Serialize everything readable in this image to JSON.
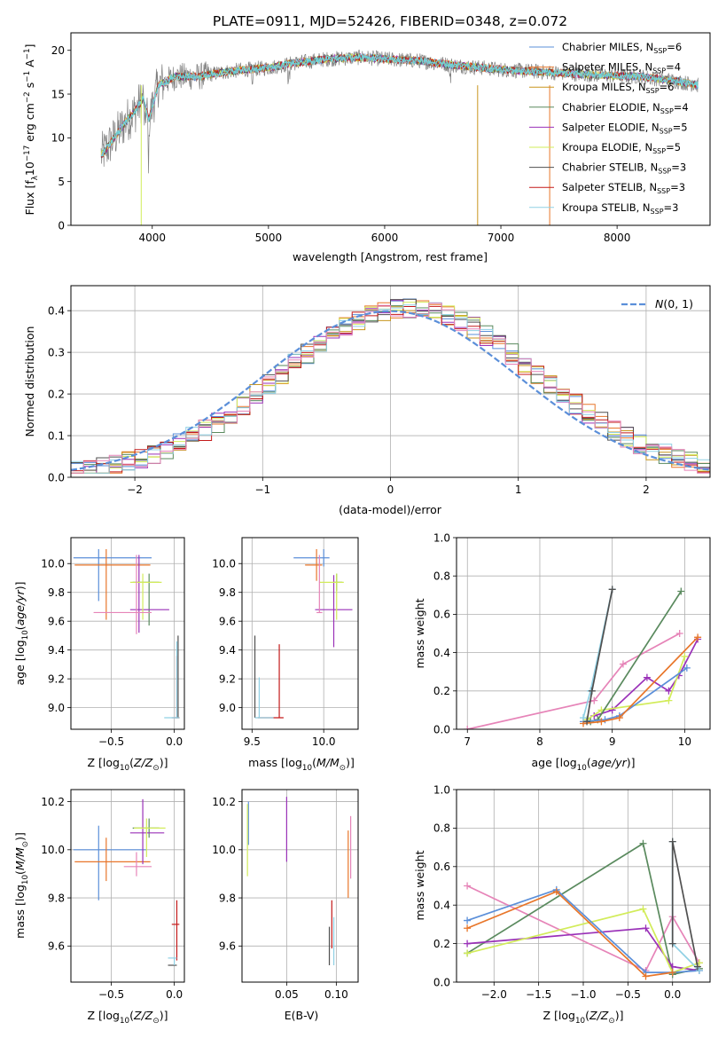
{
  "figure_title": "PLATE=0911, MJD=52426, FIBERID=0348, z=0.072",
  "colors": {
    "chabrier_miles": "#5b8fd9",
    "salpeter_miles": "#e8762a",
    "kroupa_miles": "#c8961e",
    "chabrier_elodie": "#5a8a5e",
    "salpeter_elodie": "#9a31b8",
    "kroupa_elodie": "#d2ec5a",
    "chabrier_stelib": "#505050",
    "salpeter_stelib": "#c41a1a",
    "kroupa_stelib": "#8fd0e4",
    "pink": "#e684b8",
    "data": "#808080",
    "model": "#6ad3d6",
    "gaussian": "#5b8fd9"
  },
  "chart_data": [
    {
      "id": "spectrum",
      "type": "line",
      "title": "PLATE=0911, MJD=52426, FIBERID=0348, z=0.072",
      "xlabel": "wavelength [Angstrom, rest frame]",
      "ylabel": "Flux [f_λ 10^-17 erg cm^-2 s^-1 A^-1]",
      "xlim": [
        3300,
        8800
      ],
      "ylim": [
        0,
        22
      ],
      "xticks": [
        4000,
        5000,
        6000,
        7000,
        8000
      ],
      "yticks": [
        0,
        5,
        10,
        15,
        20
      ],
      "grid": false,
      "legend_position": "top-right",
      "continuum": {
        "x": [
          3560,
          3620,
          3700,
          3780,
          3850,
          3920,
          3970,
          4050,
          4200,
          4400,
          4600,
          4800,
          5000,
          5200,
          5500,
          5800,
          6000,
          6300,
          6600,
          7000,
          7400,
          7800,
          8200,
          8500,
          8700
        ],
        "y": [
          8.0,
          9.0,
          10.5,
          12.0,
          13.0,
          14.5,
          12.0,
          16.0,
          17.0,
          17.0,
          17.5,
          17.8,
          18.0,
          18.5,
          19.0,
          19.2,
          19.0,
          18.8,
          18.3,
          17.8,
          17.5,
          17.2,
          17.0,
          16.5,
          16.0
        ]
      },
      "series": [
        {
          "name": "Chabrier MILES, N_SSP=6",
          "color_key": "chabrier_miles"
        },
        {
          "name": "Salpeter MILES, N_SSP=4",
          "color_key": "salpeter_miles"
        },
        {
          "name": "Kroupa MILES, N_SSP=6",
          "color_key": "kroupa_miles"
        },
        {
          "name": "Chabrier ELODIE, N_SSP=4",
          "color_key": "chabrier_elodie"
        },
        {
          "name": "Salpeter ELODIE, N_SSP=5",
          "color_key": "salpeter_elodie"
        },
        {
          "name": "Kroupa ELODIE, N_SSP=5",
          "color_key": "kroupa_elodie"
        },
        {
          "name": "Chabrier STELIB, N_SSP=3",
          "color_key": "chabrier_stelib"
        },
        {
          "name": "Salpeter STELIB, N_SSP=3",
          "color_key": "salpeter_stelib"
        },
        {
          "name": "Kroupa STELIB, N_SSP=3",
          "color_key": "kroupa_stelib"
        }
      ],
      "legend_labels": [
        {
          "prefix": "Chabrier MILES, N",
          "sub": "SSP",
          "suffix": "=6"
        },
        {
          "prefix": "Salpeter MILES, N",
          "sub": "SSP",
          "suffix": "=4"
        },
        {
          "prefix": "Kroupa MILES, N",
          "sub": "SSP",
          "suffix": "=6"
        },
        {
          "prefix": "Chabrier ELODIE, N",
          "sub": "SSP",
          "suffix": "=4"
        },
        {
          "prefix": "Salpeter ELODIE, N",
          "sub": "SSP",
          "suffix": "=5"
        },
        {
          "prefix": "Kroupa ELODIE, N",
          "sub": "SSP",
          "suffix": "=5"
        },
        {
          "prefix": "Chabrier STELIB, N",
          "sub": "SSP",
          "suffix": "=3"
        },
        {
          "prefix": "Salpeter STELIB, N",
          "sub": "SSP",
          "suffix": "=3"
        },
        {
          "prefix": "Kroupa STELIB, N",
          "sub": "SSP",
          "suffix": "=3"
        }
      ]
    },
    {
      "id": "residuals",
      "type": "histogram",
      "xlabel": "(data-model)/error",
      "ylabel": "Normed distribution",
      "xlim": [
        -2.5,
        2.5
      ],
      "ylim": [
        0,
        0.46
      ],
      "xticks": [
        -2,
        -1,
        0,
        1,
        2
      ],
      "yticks": [
        0.0,
        0.1,
        0.2,
        0.3,
        0.4
      ],
      "grid": true,
      "legend_position": "top-right",
      "legend_label": "N(0,1)",
      "bin_width": 0.1,
      "bins_from": -2.5,
      "bins_to": 2.5
    },
    {
      "id": "age_vs_z",
      "type": "errorbar",
      "xlabel": "Z [log10(Z/Z_sun)]",
      "ylabel": "age [log10(age/yr)]",
      "xlim": [
        -0.82,
        0.08
      ],
      "ylim": [
        8.85,
        10.18
      ],
      "xticks": [
        -0.5,
        0.0
      ],
      "xtick_labels": [
        "−0.5",
        "0.0"
      ],
      "yticks": [
        9.0,
        9.2,
        9.4,
        9.6,
        9.8,
        10.0
      ],
      "grid": true,
      "points": [
        {
          "x": -0.6,
          "xerr": [
            0.2,
            0.42
          ],
          "y": 10.04,
          "yerr": [
            0.3,
            0.06
          ],
          "color_key": "chabrier_miles"
        },
        {
          "x": -0.54,
          "xerr": [
            0.25,
            0.35
          ],
          "y": 9.99,
          "yerr": [
            0.38,
            0.11
          ],
          "color_key": "salpeter_miles"
        },
        {
          "x": -0.2,
          "xerr": [
            0.13,
            0.08
          ],
          "y": 9.87,
          "yerr": [
            0.3,
            0.06
          ],
          "color_key": "chabrier_elodie"
        },
        {
          "x": -0.28,
          "xerr": [
            0.07,
            0.24
          ],
          "y": 9.68,
          "yerr": [
            0.16,
            0.38
          ],
          "color_key": "salpeter_elodie"
        },
        {
          "x": -0.25,
          "xerr": [
            0.1,
            0.15
          ],
          "y": 9.87,
          "yerr": [
            0.26,
            0.06
          ],
          "color_key": "kroupa_elodie"
        },
        {
          "x": -0.3,
          "xerr": [
            0.34,
            0.12
          ],
          "y": 9.66,
          "yerr": [
            0.15,
            0.4
          ],
          "color_key": "pink"
        },
        {
          "x": 0.03,
          "xerr": [
            0.02,
            0.01
          ],
          "y": 8.93,
          "yerr": [
            0.0,
            0.57
          ],
          "color_key": "chabrier_stelib"
        },
        {
          "x": 0.02,
          "xerr": [
            0.04,
            0.02
          ],
          "y": 8.93,
          "yerr": [
            0.0,
            0.43
          ],
          "color_key": "salpeter_stelib"
        },
        {
          "x": 0.02,
          "xerr": [
            0.1,
            0.02
          ],
          "y": 8.93,
          "yerr": [
            0.0,
            0.53
          ],
          "color_key": "kroupa_stelib"
        }
      ]
    },
    {
      "id": "age_vs_mass",
      "type": "errorbar",
      "xlabel": "mass [log10(M/M_sun)]",
      "ylabel": "",
      "xlim": [
        9.43,
        10.24
      ],
      "ylim": [
        8.85,
        10.18
      ],
      "xticks": [
        9.5,
        10.0
      ],
      "xtick_labels": [
        "9.5",
        "10.0"
      ],
      "yticks": [
        9.0,
        9.2,
        9.4,
        9.6,
        9.8,
        10.0
      ],
      "grid": true,
      "points": [
        {
          "x": 10.0,
          "xerr": [
            0.21,
            0.04
          ],
          "y": 10.04,
          "yerr": [
            0.06,
            0.06
          ],
          "color_key": "chabrier_miles"
        },
        {
          "x": 9.95,
          "xerr": [
            0.08,
            0.04
          ],
          "y": 9.99,
          "yerr": [
            0.11,
            0.11
          ],
          "color_key": "salpeter_miles"
        },
        {
          "x": 10.09,
          "xerr": [
            0.02,
            0.04
          ],
          "y": 9.87,
          "yerr": [
            0.06,
            0.06
          ],
          "color_key": "chabrier_elodie"
        },
        {
          "x": 10.07,
          "xerr": [
            0.13,
            0.13
          ],
          "y": 9.68,
          "yerr": [
            0.26,
            0.24
          ],
          "color_key": "salpeter_elodie"
        },
        {
          "x": 10.09,
          "xerr": [
            0.12,
            0.05
          ],
          "y": 9.87,
          "yerr": [
            0.26,
            0.06
          ],
          "color_key": "kroupa_elodie"
        },
        {
          "x": 9.97,
          "xerr": [
            0.02,
            0.02
          ],
          "y": 9.66,
          "yerr": [
            0.0,
            0.4
          ],
          "color_key": "pink"
        },
        {
          "x": 9.52,
          "xerr": [
            0.0,
            0.0
          ],
          "y": 8.93,
          "yerr": [
            0.0,
            0.57
          ],
          "color_key": "chabrier_stelib"
        },
        {
          "x": 9.69,
          "xerr": [
            0.15,
            0.03
          ],
          "y": 8.93,
          "yerr": [
            0.0,
            0.51
          ],
          "color_key": "salpeter_stelib"
        },
        {
          "x": 9.55,
          "xerr": [
            0.03,
            0.1
          ],
          "y": 8.93,
          "yerr": [
            0.0,
            0.28
          ],
          "color_key": "kroupa_stelib"
        }
      ]
    },
    {
      "id": "weight_vs_age",
      "type": "line",
      "xlabel": "age [log10(age/yr)]",
      "ylabel": "mass weight",
      "xlim": [
        6.85,
        10.35
      ],
      "ylim": [
        0,
        1.0
      ],
      "xticks": [
        7,
        8,
        9,
        10
      ],
      "xtick_labels": [
        "7",
        "8",
        "9",
        "10"
      ],
      "yticks": [
        0.0,
        0.2,
        0.4,
        0.6,
        0.8,
        1.0
      ],
      "grid": true,
      "series": [
        {
          "color_key": "pink",
          "x": [
            7.0,
            8.75,
            9.15,
            9.93
          ],
          "y": [
            0.0,
            0.15,
            0.34,
            0.5
          ]
        },
        {
          "color_key": "salpeter_elodie",
          "x": [
            8.75,
            9.0,
            9.48,
            9.78,
            9.92,
            10.18
          ],
          "y": [
            0.07,
            0.1,
            0.27,
            0.2,
            0.28,
            0.47
          ]
        },
        {
          "color_key": "kroupa_elodie",
          "x": [
            8.65,
            8.85,
            9.78,
            10.0
          ],
          "y": [
            0.05,
            0.1,
            0.15,
            0.38
          ]
        },
        {
          "color_key": "chabrier_elodie",
          "x": [
            8.7,
            8.8,
            9.95
          ],
          "y": [
            0.04,
            0.05,
            0.72
          ]
        },
        {
          "color_key": "chabrier_miles",
          "x": [
            8.6,
            8.9,
            9.1,
            10.03
          ],
          "y": [
            0.04,
            0.05,
            0.07,
            0.32
          ]
        },
        {
          "color_key": "salpeter_miles",
          "x": [
            8.6,
            8.85,
            9.1,
            10.18
          ],
          "y": [
            0.03,
            0.04,
            0.06,
            0.48
          ]
        },
        {
          "color_key": "kroupa_stelib",
          "x": [
            8.6,
            8.7,
            9.0
          ],
          "y": [
            0.06,
            0.2,
            0.73
          ]
        },
        {
          "color_key": "chabrier_stelib",
          "x": [
            8.65,
            8.72,
            9.0
          ],
          "y": [
            0.04,
            0.2,
            0.73
          ]
        }
      ]
    },
    {
      "id": "mass_vs_z",
      "type": "errorbar",
      "xlabel": "Z [log10(Z/Z_sun)]",
      "ylabel": "mass [log10(M/M_sun)]",
      "xlim": [
        -0.82,
        0.08
      ],
      "ylim": [
        9.45,
        10.25
      ],
      "xticks": [
        -0.5,
        0.0
      ],
      "xtick_labels": [
        "−0.5",
        "0.0"
      ],
      "yticks": [
        9.6,
        9.8,
        10.0,
        10.2
      ],
      "grid": true,
      "points": [
        {
          "x": -0.6,
          "xerr": [
            0.2,
            0.38
          ],
          "y": 10.0,
          "yerr": [
            0.21,
            0.1
          ],
          "color_key": "chabrier_miles"
        },
        {
          "x": -0.54,
          "xerr": [
            0.25,
            0.35
          ],
          "y": 9.95,
          "yerr": [
            0.08,
            0.1
          ],
          "color_key": "salpeter_miles"
        },
        {
          "x": -0.2,
          "xerr": [
            0.13,
            0.08
          ],
          "y": 10.09,
          "yerr": [
            0.04,
            0.04
          ],
          "color_key": "chabrier_elodie"
        },
        {
          "x": -0.25,
          "xerr": [
            0.1,
            0.17
          ],
          "y": 10.07,
          "yerr": [
            0.13,
            0.14
          ],
          "color_key": "salpeter_elodie"
        },
        {
          "x": -0.22,
          "xerr": [
            0.1,
            0.15
          ],
          "y": 10.09,
          "yerr": [
            0.12,
            0.04
          ],
          "color_key": "kroupa_elodie"
        },
        {
          "x": -0.3,
          "xerr": [
            0.1,
            0.12
          ],
          "y": 9.93,
          "yerr": [
            0.04,
            0.06
          ],
          "color_key": "pink"
        },
        {
          "x": 0.0,
          "xerr": [
            0.05,
            0.02
          ],
          "y": 9.52,
          "yerr": [
            0.0,
            0.0
          ],
          "color_key": "chabrier_stelib"
        },
        {
          "x": 0.02,
          "xerr": [
            0.04,
            0.02
          ],
          "y": 9.69,
          "yerr": [
            0.15,
            0.1
          ],
          "color_key": "salpeter_stelib"
        },
        {
          "x": 0.0,
          "xerr": [
            0.05,
            0.02
          ],
          "y": 9.55,
          "yerr": [
            0.03,
            0.0
          ],
          "color_key": "kroupa_stelib"
        }
      ]
    },
    {
      "id": "mass_vs_ebv",
      "type": "errorbar",
      "xlabel": "E(B-V)",
      "ylabel": "",
      "xlim": [
        0.005,
        0.122
      ],
      "ylim": [
        9.45,
        10.25
      ],
      "xticks": [
        0.05,
        0.1
      ],
      "xtick_labels": [
        "0.05",
        "0.10"
      ],
      "yticks": [
        9.6,
        9.8,
        10.0,
        10.2
      ],
      "grid": true,
      "points": [
        {
          "x": 0.0115,
          "xerr": [
            0,
            0
          ],
          "y": 10.07,
          "yerr": [
            0.05,
            0.13
          ],
          "color_key": "chabrier_miles"
        },
        {
          "x": 0.0105,
          "xerr": [
            0,
            0
          ],
          "y": 10.05,
          "yerr": [
            0.16,
            0.14
          ],
          "color_key": "kroupa_elodie"
        },
        {
          "x": 0.05,
          "xerr": [
            0,
            0
          ],
          "y": 10.1,
          "yerr": [
            0.15,
            0.12
          ],
          "color_key": "salpeter_elodie"
        },
        {
          "x": 0.093,
          "xerr": [
            0,
            0
          ],
          "y": 9.59,
          "yerr": [
            0.07,
            0.09
          ],
          "color_key": "chabrier_stelib"
        },
        {
          "x": 0.0955,
          "xerr": [
            0,
            0
          ],
          "y": 9.7,
          "yerr": [
            0.11,
            0.09
          ],
          "color_key": "salpeter_stelib"
        },
        {
          "x": 0.0975,
          "xerr": [
            0,
            0
          ],
          "y": 9.62,
          "yerr": [
            0.1,
            0.1
          ],
          "color_key": "kroupa_stelib"
        },
        {
          "x": 0.112,
          "xerr": [
            0,
            0
          ],
          "y": 9.95,
          "yerr": [
            0.15,
            0.13
          ],
          "color_key": "salpeter_miles"
        },
        {
          "x": 0.1145,
          "xerr": [
            0,
            0
          ],
          "y": 10.0,
          "yerr": [
            0.12,
            0.14
          ],
          "color_key": "pink"
        }
      ]
    },
    {
      "id": "weight_vs_z",
      "type": "line",
      "xlabel": "Z [log10(Z/Z_sun)]",
      "ylabel": "mass weight",
      "xlim": [
        -2.42,
        0.42
      ],
      "ylim": [
        0,
        1.0
      ],
      "xticks": [
        -2.0,
        -1.5,
        -1.0,
        -0.5,
        0.0
      ],
      "xtick_labels": [
        "−2.0",
        "−1.5",
        "−1.0",
        "−0.5",
        "0.0"
      ],
      "yticks": [
        0.0,
        0.2,
        0.4,
        0.6,
        0.8,
        1.0
      ],
      "grid": true,
      "series": [
        {
          "color_key": "pink",
          "x": [
            -2.3,
            -0.3,
            0.0,
            0.3
          ],
          "y": [
            0.5,
            0.06,
            0.34,
            0.1
          ]
        },
        {
          "color_key": "chabrier_elodie",
          "x": [
            -2.3,
            -0.33,
            0.0,
            0.3
          ],
          "y": [
            0.15,
            0.72,
            0.04,
            0.07
          ]
        },
        {
          "color_key": "salpeter_elodie",
          "x": [
            -2.3,
            -0.3,
            0.0,
            0.3
          ],
          "y": [
            0.2,
            0.28,
            0.08,
            0.06
          ]
        },
        {
          "color_key": "kroupa_elodie",
          "x": [
            -2.3,
            -0.33,
            0.0,
            0.3
          ],
          "y": [
            0.15,
            0.38,
            0.05,
            0.1
          ]
        },
        {
          "color_key": "chabrier_miles",
          "x": [
            -2.3,
            -1.3,
            -0.3,
            0.0,
            0.3
          ],
          "y": [
            0.32,
            0.48,
            0.05,
            0.05,
            0.06
          ]
        },
        {
          "color_key": "salpeter_miles",
          "x": [
            -2.3,
            -1.3,
            -0.3,
            0.0
          ],
          "y": [
            0.28,
            0.47,
            0.03,
            0.05
          ]
        },
        {
          "color_key": "kroupa_stelib",
          "x": [
            0.0,
            0.0,
            0.3
          ],
          "y": [
            0.73,
            0.2,
            0.06
          ]
        },
        {
          "color_key": "chabrier_stelib",
          "x": [
            0.0,
            0.0,
            0.28
          ],
          "y": [
            0.2,
            0.73,
            0.08
          ]
        }
      ]
    }
  ]
}
